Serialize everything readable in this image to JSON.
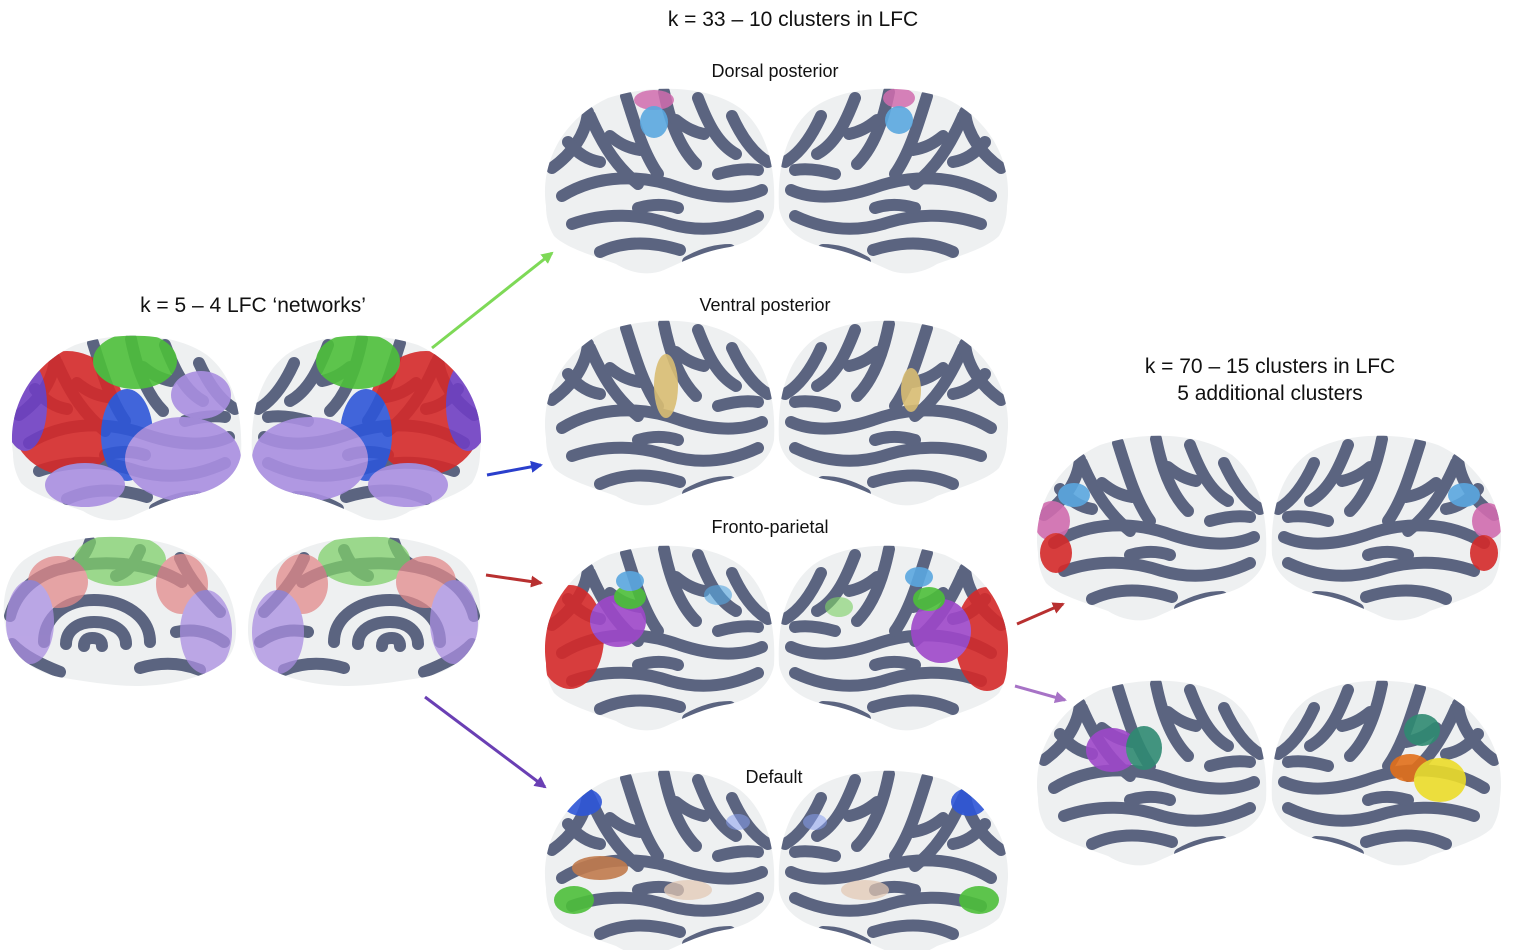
{
  "colors": {
    "surface": "#eef0f1",
    "sulci": "#5b6480",
    "green": "#4dbf3a",
    "red": "#d42a2a",
    "blue": "#2e56d8",
    "lavender": "#a98ee0",
    "purple": "#6f3fc2",
    "violet": "#9e48c9",
    "pink": "#d06cae",
    "skyblue": "#5aa7df",
    "tan": "#d8bd72",
    "brown": "#c07b4d",
    "teal": "#2f8a72",
    "orange": "#e26f1a",
    "yellow": "#ecdc2a",
    "light_green": "#7fd06a",
    "arrow_green": "#7ed957",
    "arrow_blue": "#2a3fcc",
    "arrow_red": "#b83030",
    "arrow_purple": "#6a3fb4",
    "arrow_violet": "#a773c6"
  },
  "labels": {
    "left_title": "k = 5 – 4 LFC ‘networks’",
    "center_title": "k = 33 – 10 clusters in LFC",
    "right_title_line1": "k = 70 – 15 clusters in LFC",
    "right_title_line2": "5 additional clusters",
    "panel_dorsal": "Dorsal posterior",
    "panel_ventral": "Ventral posterior",
    "panel_fronto": "Fronto-parietal",
    "panel_default": "Default"
  }
}
